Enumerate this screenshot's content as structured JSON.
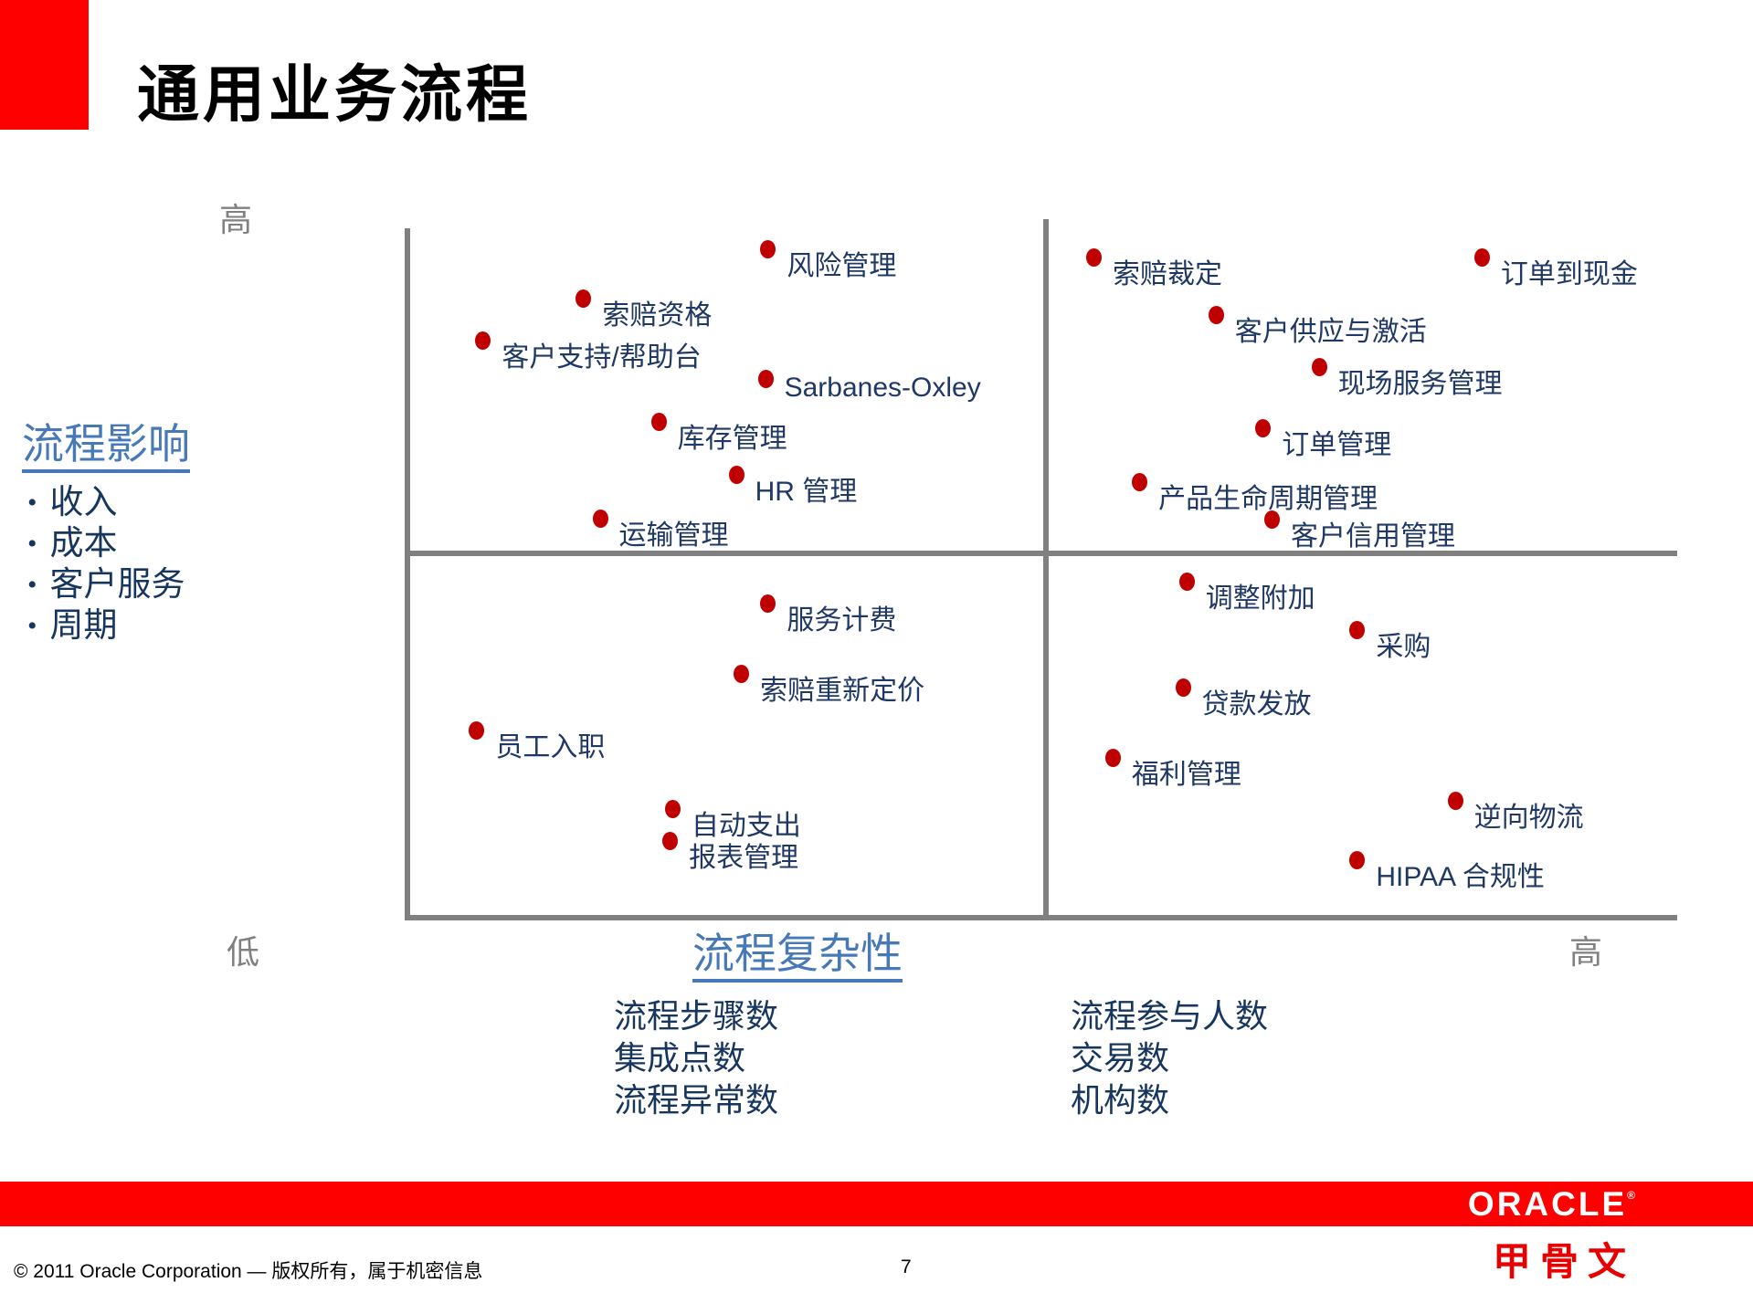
{
  "slide": {
    "title": "通用业务流程",
    "page_number": "7"
  },
  "impact_panel": {
    "heading": "流程影响",
    "bullets": [
      "收入",
      "成本",
      "客户服务",
      "周期"
    ]
  },
  "axes": {
    "y_high_label": "高",
    "y_low_label": "低",
    "x_high_label": "高",
    "x_title": "流程复杂性"
  },
  "complexity_factors": {
    "left_column": [
      "流程步骤数",
      "集成点数",
      "流程异常数"
    ],
    "right_column": [
      "流程参与人数",
      "交易数",
      "机构数"
    ]
  },
  "footer": {
    "copyright": "© 2011 Oracle Corporation — 版权所有，属于机密信息",
    "logo_text": "ORACLE",
    "logo_registered": "®",
    "logo_cn": "甲骨文"
  },
  "colors": {
    "accent_red": "#fe0000",
    "dot_red": "#c00000",
    "label_navy": "#1f3864",
    "text_navy": "#17365d",
    "steel_blue": "#4779b8",
    "axis_gray": "#808080"
  },
  "chart_data": {
    "type": "scatter",
    "title": "通用业务流程",
    "x_axis": {
      "label": "流程复杂性",
      "low_label": "低",
      "high_label": "高",
      "range": [
        0,
        100
      ]
    },
    "y_axis": {
      "label": "流程影响",
      "high_label": "高",
      "range": [
        0,
        100
      ]
    },
    "grid": "quadrant",
    "legend_position": "none",
    "points": [
      {
        "label": "风险管理",
        "x": 28.6,
        "y": 97.0
      },
      {
        "label": "索赔资格",
        "x": 14.1,
        "y": 89.8
      },
      {
        "label": "客户支持/帮助台",
        "x": 6.2,
        "y": 83.8
      },
      {
        "label": "Sarbanes-Oxley",
        "x": 28.4,
        "y": 78.2
      },
      {
        "label": "库存管理",
        "x": 20.0,
        "y": 72.0
      },
      {
        "label": "HR 管理",
        "x": 26.1,
        "y": 64.4
      },
      {
        "label": "运输管理",
        "x": 15.4,
        "y": 58.0
      },
      {
        "label": "索赔裁定",
        "x": 54.2,
        "y": 95.8
      },
      {
        "label": "订单到现金",
        "x": 84.7,
        "y": 95.8
      },
      {
        "label": "客户供应与激活",
        "x": 63.8,
        "y": 87.5
      },
      {
        "label": "现场服务管理",
        "x": 71.9,
        "y": 80.0
      },
      {
        "label": "订单管理",
        "x": 67.5,
        "y": 71.1
      },
      {
        "label": "产品生命周期管理",
        "x": 57.8,
        "y": 63.3
      },
      {
        "label": "客户信用管理",
        "x": 68.2,
        "y": 57.9
      },
      {
        "label": "服务计费",
        "x": 28.6,
        "y": 45.8
      },
      {
        "label": "索赔重新定价",
        "x": 26.5,
        "y": 35.6
      },
      {
        "label": "员工入职",
        "x": 5.7,
        "y": 27.4
      },
      {
        "label": "自动支出",
        "x": 21.1,
        "y": 16.1
      },
      {
        "label": "报表管理",
        "x": 20.9,
        "y": 11.5
      },
      {
        "label": "调整附加",
        "x": 61.5,
        "y": 48.9
      },
      {
        "label": "采购",
        "x": 74.9,
        "y": 42.0
      },
      {
        "label": "贷款发放",
        "x": 61.2,
        "y": 33.6
      },
      {
        "label": "福利管理",
        "x": 55.7,
        "y": 23.5
      },
      {
        "label": "逆向物流",
        "x": 82.6,
        "y": 17.3
      },
      {
        "label": "HIPAA 合规性",
        "x": 74.9,
        "y": 8.7
      }
    ]
  }
}
